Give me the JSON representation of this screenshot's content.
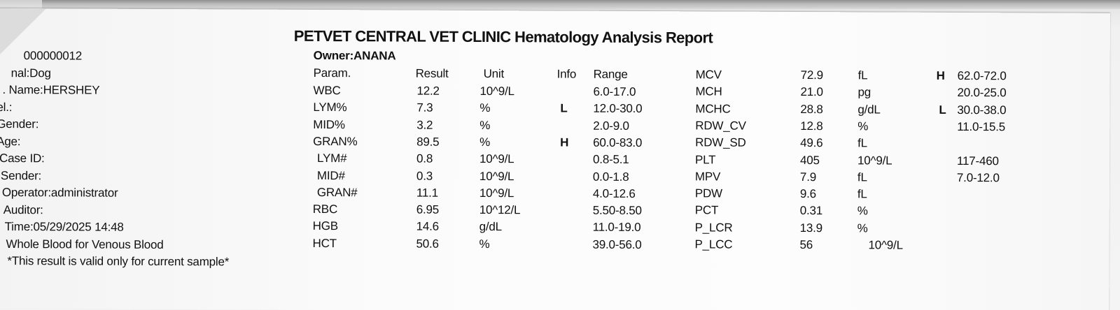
{
  "title": "PETVET CENTRAL VET CLINIC Hematology Analysis Report",
  "owner_line": "Owner:ANANA",
  "left_info": [
    "000000012",
    "nal:Dog",
    ". Name:HERSHEY",
    "el.:",
    "Gender:",
    "Age:",
    "Case ID:",
    "Sender:",
    "Operator:administrator",
    "Auditor:",
    "Time:05/29/2025 14:48",
    "Whole Blood for Venous Blood",
    "*This result is valid only for current sample*"
  ],
  "headers": {
    "param": "Param.",
    "result": "Result",
    "unit": "Unit",
    "info": "Info",
    "range": "Range"
  },
  "table_left": [
    {
      "param": "WBC",
      "result": "12.2",
      "unit": "10^9/L",
      "info": "",
      "range": "6.0-17.0"
    },
    {
      "param": "LYM%",
      "result": "7.3",
      "unit": "%",
      "info": "L",
      "range": "12.0-30.0"
    },
    {
      "param": "MID%",
      "result": "3.2",
      "unit": "%",
      "info": "",
      "range": "2.0-9.0"
    },
    {
      "param": "GRAN%",
      "result": "89.5",
      "unit": "%",
      "info": "H",
      "range": "60.0-83.0"
    },
    {
      "param": "LYM#",
      "result": "0.8",
      "unit": "10^9/L",
      "info": "",
      "range": "0.8-5.1"
    },
    {
      "param": "MID#",
      "result": "0.3",
      "unit": "10^9/L",
      "info": "",
      "range": "0.0-1.8"
    },
    {
      "param": "GRAN#",
      "result": "11.1",
      "unit": "10^9/L",
      "info": "",
      "range": "4.0-12.6"
    },
    {
      "param": "RBC",
      "result": "6.95",
      "unit": "10^12/L",
      "info": "",
      "range": "5.50-8.50"
    },
    {
      "param": "HGB",
      "result": "14.6",
      "unit": "g/dL",
      "info": "",
      "range": "11.0-19.0"
    },
    {
      "param": "HCT",
      "result": "50.6",
      "unit": "%",
      "info": "",
      "range": "39.0-56.0"
    }
  ],
  "table_right": [
    {
      "param": "MCV",
      "result": "72.9",
      "unit": "fL",
      "info": "H",
      "range": "62.0-72.0"
    },
    {
      "param": "MCH",
      "result": "21.0",
      "unit": "pg",
      "info": "",
      "range": "20.0-25.0"
    },
    {
      "param": "MCHC",
      "result": "28.8",
      "unit": "g/dL",
      "info": "L",
      "range": "30.0-38.0"
    },
    {
      "param": "RDW_CV",
      "result": "12.8",
      "unit": "%",
      "info": "",
      "range": "11.0-15.5"
    },
    {
      "param": "RDW_SD",
      "result": "49.6",
      "unit": "fL",
      "info": "",
      "range": ""
    },
    {
      "param": "PLT",
      "result": "405",
      "unit": "10^9/L",
      "info": "",
      "range": "117-460"
    },
    {
      "param": "MPV",
      "result": "7.9",
      "unit": "fL",
      "info": "",
      "range": "7.0-12.0"
    },
    {
      "param": "PDW",
      "result": "9.6",
      "unit": "fL",
      "info": "",
      "range": ""
    },
    {
      "param": "PCT",
      "result": "0.31",
      "unit": "%",
      "info": "",
      "range": ""
    },
    {
      "param": "P_LCR",
      "result": "13.9",
      "unit": "%",
      "info": "",
      "range": ""
    },
    {
      "param": "P_LCC",
      "result": "56",
      "unit": "10^9/L",
      "info": "",
      "range": ""
    }
  ]
}
